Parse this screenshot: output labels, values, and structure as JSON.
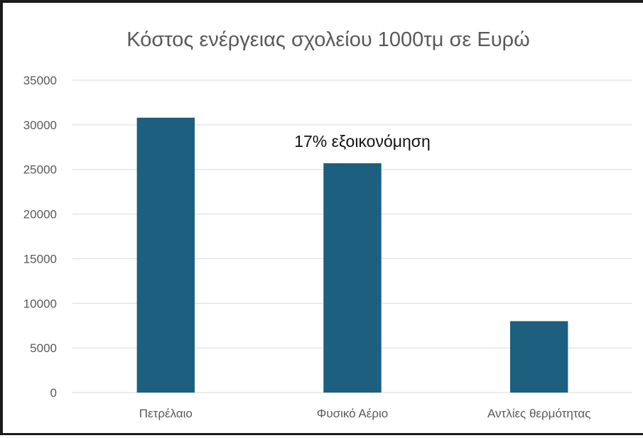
{
  "chart_data": {
    "type": "bar",
    "title": "Κόστος ενέργειας σχολείου 1000τμ σε Ευρώ",
    "categories": [
      "Πετρέλαιο",
      "Φυσικό Αέριο",
      "Αντλίες θερμότητας"
    ],
    "values": [
      30800,
      25700,
      8000
    ],
    "ylim": [
      0,
      35000
    ],
    "yticks": [
      0,
      5000,
      10000,
      15000,
      20000,
      25000,
      30000,
      35000
    ],
    "xlabel": "",
    "ylabel": "",
    "grid": true,
    "legend": "none",
    "bar_color": "#1c5f7f",
    "annotation": {
      "text": "17% εξοικονόμηση",
      "category": "Φυσικό Αέριο"
    }
  }
}
